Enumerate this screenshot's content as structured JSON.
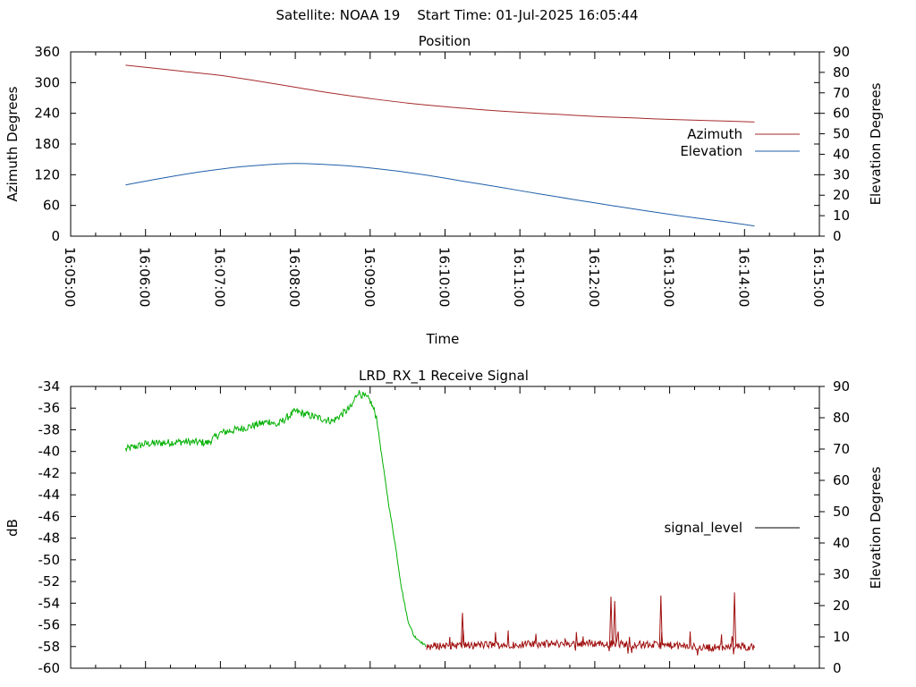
{
  "header": {
    "title": "Satellite: NOAA 19    Start Time: 01-Jul-2025 16:05:44"
  },
  "colors": {
    "azimuth": "#a52a2a",
    "elevation": "#1f5fa8",
    "signal_green": "#00b000",
    "signal_red": "#a01010",
    "axis": "#000000"
  },
  "chart_data": [
    {
      "id": "position",
      "type": "line",
      "title": "Position",
      "xlabel": "Time",
      "ylabel": "Azimuth Degrees",
      "y2label": "Elevation Degrees",
      "x_range": [
        "16:05:00",
        "16:15:00"
      ],
      "ylim": [
        0,
        360
      ],
      "y2lim": [
        0,
        90
      ],
      "y_ticks": [
        "360",
        "300",
        "240",
        "180",
        "120",
        "60",
        "0"
      ],
      "y2_ticks": [
        "90",
        "80",
        "70",
        "60",
        "50",
        "40",
        "30",
        "20",
        "10",
        "0"
      ],
      "x_ticks": [
        "16:05:00",
        "16:06:00",
        "16:07:00",
        "16:08:00",
        "16:09:00",
        "16:10:00",
        "16:11:00",
        "16:12:00",
        "16:13:00",
        "16:14:00",
        "16:15:00"
      ],
      "legend_position": "right",
      "series": [
        {
          "name": "Azimuth",
          "axis": "left",
          "x": [
            "16:05:44",
            "16:06:30",
            "16:07:00",
            "16:07:30",
            "16:08:00",
            "16:08:30",
            "16:09:00",
            "16:09:30",
            "16:10:00",
            "16:10:30",
            "16:11:00",
            "16:11:30",
            "16:12:00",
            "16:12:30",
            "16:13:00",
            "16:13:30",
            "16:14:08"
          ],
          "values": [
            334,
            322,
            314,
            303,
            291,
            279,
            269,
            260,
            253,
            247,
            242,
            238,
            234,
            231,
            228,
            226,
            223
          ]
        },
        {
          "name": "Elevation",
          "axis": "right",
          "x": [
            "16:05:44",
            "16:06:15",
            "16:06:45",
            "16:07:15",
            "16:07:45",
            "16:08:00",
            "16:08:15",
            "16:08:45",
            "16:09:15",
            "16:09:45",
            "16:10:15",
            "16:10:45",
            "16:11:15",
            "16:11:45",
            "16:12:15",
            "16:12:45",
            "16:13:15",
            "16:13:45",
            "16:14:08"
          ],
          "values": [
            25,
            28.5,
            31.5,
            33.8,
            35.2,
            35.5,
            35.3,
            34.2,
            32.3,
            29.8,
            26.8,
            23.8,
            20.7,
            17.7,
            14.8,
            12.0,
            9.4,
            7.0,
            5.0
          ]
        }
      ]
    },
    {
      "id": "signal",
      "type": "line",
      "title": "LRD_RX_1 Receive Signal",
      "ylabel": "dB",
      "y2label": "Elevation Degrees",
      "x_range": [
        "16:05:00",
        "16:15:00"
      ],
      "ylim": [
        -60,
        -34
      ],
      "y2lim": [
        0,
        90
      ],
      "y_ticks": [
        "-34",
        "-36",
        "-38",
        "-40",
        "-42",
        "-44",
        "-46",
        "-48",
        "-50",
        "-52",
        "-54",
        "-56",
        "-58",
        "-60"
      ],
      "y2_ticks": [
        "90",
        "80",
        "70",
        "60",
        "50",
        "40",
        "30",
        "20",
        "10",
        "0"
      ],
      "legend_position": "right",
      "series": [
        {
          "name": "signal_level",
          "axis": "left",
          "x": [
            "16:05:44",
            "16:06:00",
            "16:06:30",
            "16:06:50",
            "16:07:00",
            "16:07:20",
            "16:07:40",
            "16:07:45",
            "16:08:00",
            "16:08:15",
            "16:08:30",
            "16:08:45",
            "16:08:50",
            "16:09:00",
            "16:09:05",
            "16:09:10",
            "16:09:15",
            "16:09:20",
            "16:09:25",
            "16:09:30",
            "16:09:35",
            "16:09:40",
            "16:09:45",
            "16:10:00",
            "16:11:00",
            "16:12:00",
            "16:12:30",
            "16:13:00",
            "16:13:30",
            "16:14:08"
          ],
          "values": [
            -39.8,
            -39.3,
            -39.1,
            -39.2,
            -38.3,
            -37.8,
            -37.2,
            -37.6,
            -36.3,
            -36.8,
            -37.2,
            -35.9,
            -34.5,
            -35.3,
            -36.8,
            -41,
            -45,
            -48.5,
            -52.5,
            -55.5,
            -57,
            -57.5,
            -58,
            -57.9,
            -57.8,
            -57.7,
            -57.8,
            -57.9,
            -58.1,
            -58.0
          ]
        }
      ],
      "spikes": [
        {
          "x": "16:10:14",
          "value": -54.9
        },
        {
          "x": "16:12:13",
          "value": -53.4
        },
        {
          "x": "16:12:16",
          "value": -53.8
        },
        {
          "x": "16:12:53",
          "value": -53.3
        },
        {
          "x": "16:13:52",
          "value": -53.0
        }
      ]
    }
  ]
}
